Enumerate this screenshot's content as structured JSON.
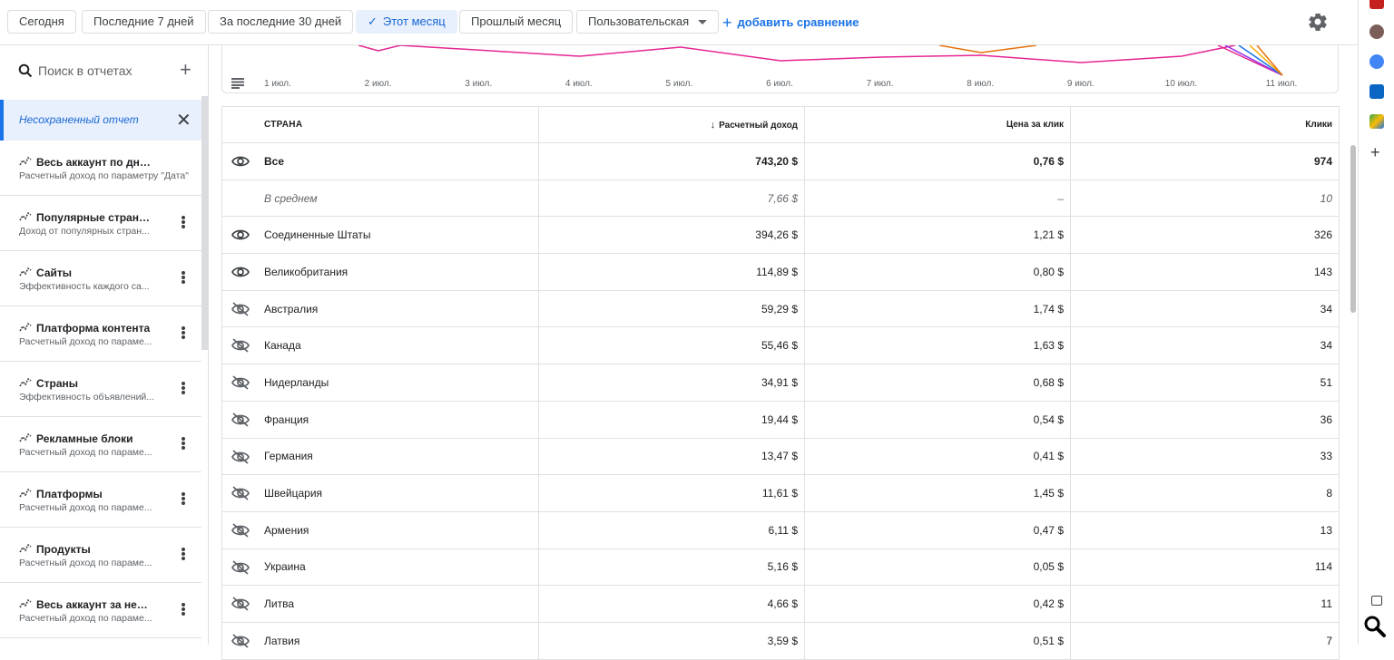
{
  "filters": {
    "chips": [
      {
        "label": "Сегодня",
        "active": false
      },
      {
        "label": "Последние 7 дней",
        "active": false
      },
      {
        "label": "За последние 30 дней",
        "active": false
      },
      {
        "label": "Этот месяц",
        "active": true
      },
      {
        "label": "Прошлый месяц",
        "active": false
      },
      {
        "label": "Пользовательская",
        "active": false
      }
    ],
    "add_compare": "добавить сравнение"
  },
  "sidebar": {
    "search_placeholder": "Поиск в отчетах",
    "unsaved_label": "Несохраненный отчет",
    "reports": [
      {
        "title": "Весь аккаунт по дням",
        "subtitle": "Расчетный доход по параметру \"Дата\""
      },
      {
        "title": "Популярные страни...",
        "subtitle": "Доход от популярных стран..."
      },
      {
        "title": "Сайты",
        "subtitle": "Эффективность каждого са..."
      },
      {
        "title": "Платформа контента",
        "subtitle": "Расчетный доход по параме..."
      },
      {
        "title": "Страны",
        "subtitle": "Эффективность объявлений..."
      },
      {
        "title": "Рекламные блоки",
        "subtitle": "Расчетный доход по параме..."
      },
      {
        "title": "Платформы",
        "subtitle": "Расчетный доход по параме..."
      },
      {
        "title": "Продукты",
        "subtitle": "Расчетный доход по параме..."
      },
      {
        "title": "Весь аккаунт за нед...",
        "subtitle": "Расчетный доход по параме..."
      }
    ]
  },
  "chart_data": {
    "type": "line",
    "x": [
      "1 июл.",
      "2 июл.",
      "3 июл.",
      "4 июл.",
      "5 июл.",
      "6 июл.",
      "7 июл.",
      "8 июл.",
      "9 июл.",
      "10 июл.",
      "11 июл."
    ],
    "colors": {
      "magenta": "#e52592",
      "orange": "#e8710a",
      "blue": "#1a73e8",
      "yellow": "#f9ab00",
      "purple": "#9334e6"
    }
  },
  "table": {
    "headers": {
      "country": "СТРАНА",
      "revenue": "Расчетный доход",
      "cpc": "Цена за клик",
      "clicks": "Клики"
    },
    "rows": [
      {
        "country": "Все",
        "revenue": "743,20 $",
        "cpc": "0,76 $",
        "clicks": "974",
        "kind": "total",
        "eye": "visible"
      },
      {
        "country": "В среднем",
        "revenue": "7,66 $",
        "cpc": "–",
        "clicks": "10",
        "kind": "avg",
        "eye": "none"
      },
      {
        "country": "Соединенные Штаты",
        "revenue": "394,26 $",
        "cpc": "1,21 $",
        "clicks": "326",
        "kind": "row",
        "eye": "visible"
      },
      {
        "country": "Великобритания",
        "revenue": "114,89 $",
        "cpc": "0,80 $",
        "clicks": "143",
        "kind": "row",
        "eye": "visible"
      },
      {
        "country": "Австралия",
        "revenue": "59,29 $",
        "cpc": "1,74 $",
        "clicks": "34",
        "kind": "row",
        "eye": "hidden"
      },
      {
        "country": "Канада",
        "revenue": "55,46 $",
        "cpc": "1,63 $",
        "clicks": "34",
        "kind": "row",
        "eye": "hidden"
      },
      {
        "country": "Нидерланды",
        "revenue": "34,91 $",
        "cpc": "0,68 $",
        "clicks": "51",
        "kind": "row",
        "eye": "hidden"
      },
      {
        "country": "Франция",
        "revenue": "19,44 $",
        "cpc": "0,54 $",
        "clicks": "36",
        "kind": "row",
        "eye": "hidden"
      },
      {
        "country": "Германия",
        "revenue": "13,47 $",
        "cpc": "0,41 $",
        "clicks": "33",
        "kind": "row",
        "eye": "hidden"
      },
      {
        "country": "Швейцария",
        "revenue": "11,61 $",
        "cpc": "1,45 $",
        "clicks": "8",
        "kind": "row",
        "eye": "hidden"
      },
      {
        "country": "Армения",
        "revenue": "6,11 $",
        "cpc": "0,47 $",
        "clicks": "13",
        "kind": "row",
        "eye": "hidden"
      },
      {
        "country": "Украина",
        "revenue": "5,16 $",
        "cpc": "0,05 $",
        "clicks": "114",
        "kind": "row",
        "eye": "hidden"
      },
      {
        "country": "Литва",
        "revenue": "4,66 $",
        "cpc": "0,42 $",
        "clicks": "11",
        "kind": "row",
        "eye": "hidden"
      },
      {
        "country": "Латвия",
        "revenue": "3,59 $",
        "cpc": "0,51 $",
        "clicks": "7",
        "kind": "row",
        "eye": "hidden"
      }
    ]
  }
}
